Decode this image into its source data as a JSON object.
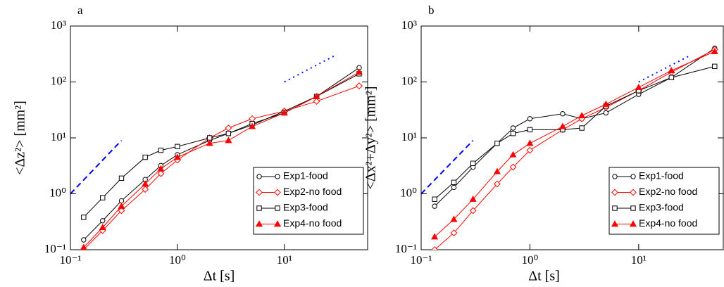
{
  "chart_data": [
    {
      "type": "line",
      "title": "a",
      "xlabel": "Δt [s]",
      "ylabel": "<Δz²> [mm²]",
      "xscale": "log",
      "yscale": "log",
      "xlim": [
        0.1,
        60
      ],
      "ylim": [
        0.1,
        1000
      ],
      "xticks": [
        {
          "value": 0.1,
          "label": "10⁻¹"
        },
        {
          "value": 1,
          "label": "10⁰"
        },
        {
          "value": 10,
          "label": "10¹"
        }
      ],
      "yticks": [
        {
          "value": 0.1,
          "label": "10⁻¹"
        },
        {
          "value": 1,
          "label": "10⁰"
        },
        {
          "value": 10,
          "label": "10¹"
        },
        {
          "value": 100,
          "label": "10²"
        },
        {
          "value": 1000,
          "label": "10³"
        }
      ],
      "legend": "lower right",
      "x": [
        0.133,
        0.2,
        0.3,
        0.5,
        0.7,
        1,
        2,
        3,
        5,
        10,
        20,
        50
      ],
      "series": [
        {
          "name": "Exp1-food",
          "color": "#000000",
          "marker": "circle",
          "values": [
            0.15,
            0.33,
            0.75,
            1.8,
            3.2,
            5,
            9,
            12,
            17,
            30,
            55,
            180
          ]
        },
        {
          "name": "Exp2-no food",
          "color": "#ff0000",
          "marker": "diamond",
          "values": [
            0.1,
            0.22,
            0.5,
            1.2,
            2.3,
            4,
            10,
            15,
            22,
            30,
            45,
            85
          ]
        },
        {
          "name": "Exp3-food",
          "color": "#000000",
          "marker": "square",
          "values": [
            0.38,
            0.85,
            1.9,
            4.5,
            6,
            7,
            10,
            12,
            18,
            28,
            55,
            140
          ]
        },
        {
          "name": "Exp4-no food",
          "color": "#ff0000",
          "marker": "triangle",
          "values": [
            0.11,
            0.25,
            0.6,
            1.5,
            2.8,
            4.5,
            8,
            9,
            16,
            28,
            55,
            150
          ]
        }
      ],
      "guides": [
        {
          "x": [
            0.1,
            0.3
          ],
          "values": [
            1,
            9
          ],
          "color": "#0000ff",
          "style": "dashed"
        },
        {
          "x": [
            10,
            30
          ],
          "values": [
            100,
            300
          ],
          "color": "#0000ff",
          "style": "dotted"
        }
      ]
    },
    {
      "type": "line",
      "title": "b",
      "xlabel": "Δt [s]",
      "ylabel": "<Δx²+Δy²> [mm²]",
      "xscale": "log",
      "yscale": "log",
      "xlim": [
        0.1,
        60
      ],
      "ylim": [
        0.1,
        1000
      ],
      "xticks": [
        {
          "value": 0.1,
          "label": "10⁻¹"
        },
        {
          "value": 1,
          "label": "10⁰"
        },
        {
          "value": 10,
          "label": "10¹"
        }
      ],
      "yticks": [
        {
          "value": 0.1,
          "label": "10⁻¹"
        },
        {
          "value": 1,
          "label": "10⁰"
        },
        {
          "value": 10,
          "label": "10¹"
        },
        {
          "value": 100,
          "label": "10²"
        },
        {
          "value": 1000,
          "label": "10³"
        }
      ],
      "legend": "lower right",
      "x": [
        0.133,
        0.2,
        0.3,
        0.5,
        0.7,
        1,
        2,
        3,
        5,
        10,
        20,
        50
      ],
      "series": [
        {
          "name": "Exp1-food",
          "color": "#000000",
          "marker": "circle",
          "values": [
            0.6,
            1.3,
            3,
            8,
            15,
            22,
            27,
            22,
            28,
            60,
            120,
            400
          ]
        },
        {
          "name": "Exp2-no food",
          "color": "#ff0000",
          "marker": "diamond",
          "values": [
            0.1,
            0.2,
            0.5,
            1.5,
            3,
            6,
            14,
            22,
            35,
            70,
            150,
            380
          ]
        },
        {
          "name": "Exp3-food",
          "color": "#000000",
          "marker": "square",
          "values": [
            0.8,
            1.6,
            3.5,
            8,
            12,
            14,
            14,
            15,
            37,
            70,
            120,
            190
          ]
        },
        {
          "name": "Exp4-no food",
          "color": "#ff0000",
          "marker": "triangle",
          "values": [
            0.17,
            0.35,
            0.8,
            2.5,
            5,
            8,
            16,
            25,
            40,
            80,
            160,
            350
          ]
        }
      ],
      "guides": [
        {
          "x": [
            0.1,
            0.3
          ],
          "values": [
            1,
            9
          ],
          "color": "#0000ff",
          "style": "dashed"
        },
        {
          "x": [
            10,
            30
          ],
          "values": [
            100,
            300
          ],
          "color": "#0000ff",
          "style": "dotted"
        }
      ]
    }
  ]
}
